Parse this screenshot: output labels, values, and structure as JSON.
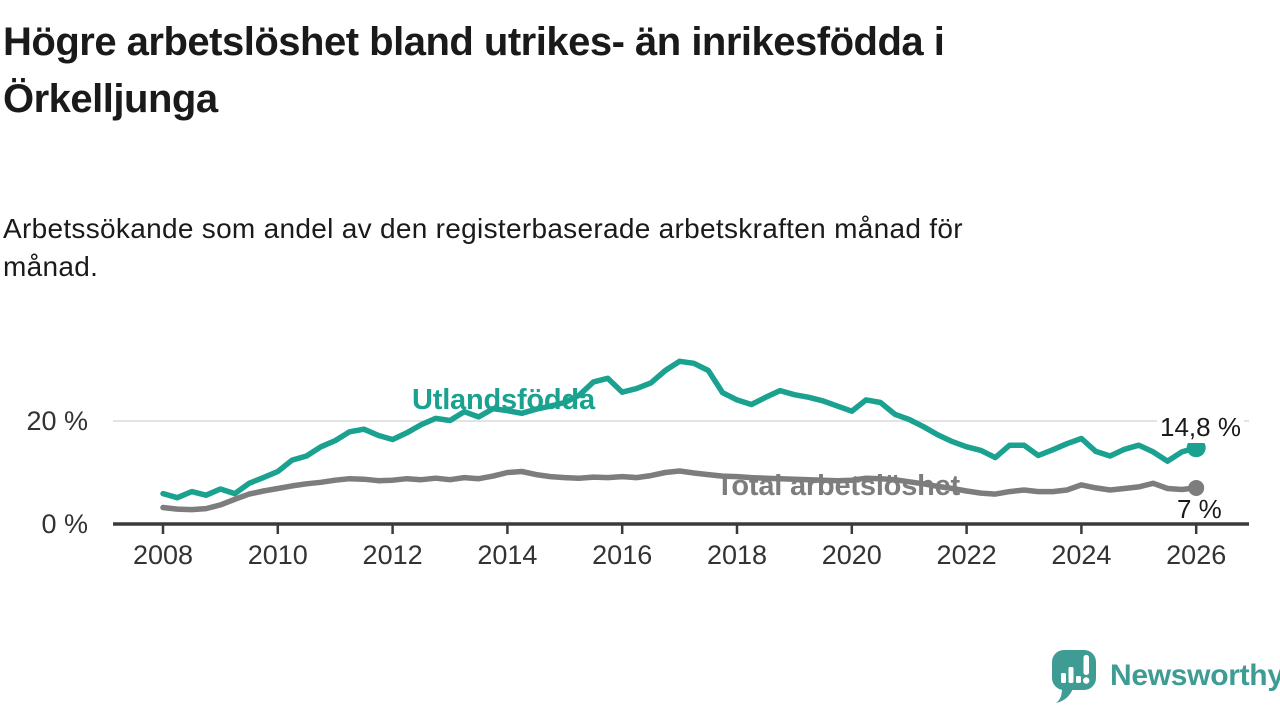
{
  "header": {
    "title_line1": "Högre arbetslöshet bland utrikes- än inrikesfödda i",
    "title_line2": "Örkelljunga",
    "subtitle_line1": "Arbetssökande som andel av den registerbaserade arbetskraften månad för",
    "subtitle_line2": "månad."
  },
  "chart_data": {
    "type": "line",
    "title": "Högre arbetslöshet bland utrikes- än inrikesfödda i Örkelljunga",
    "subtitle": "Arbetssökande som andel av den registerbaserade arbetskraften månad för månad.",
    "xlabel": "",
    "ylabel": "",
    "x_unit": "year",
    "x_start": 2008,
    "x_step_years": 0.25,
    "x_end": 2026,
    "ylim": [
      0,
      33
    ],
    "grid": "horizontal-only",
    "x_ticks": [
      2008,
      2010,
      2012,
      2014,
      2016,
      2018,
      2020,
      2022,
      2024,
      2026
    ],
    "y_ticks": [
      {
        "value": 0,
        "label": "0 %"
      },
      {
        "value": 20,
        "label": "20 %"
      }
    ],
    "axis_color": "#3a3a3a",
    "grid_color": "#dadada",
    "tick_text_color": "#333333",
    "series": [
      {
        "name": "Utlandsfödda",
        "color": "#1aa190",
        "end_value": 14.8,
        "end_label": "14,8 %",
        "values": [
          5.9,
          5.1,
          6.3,
          5.6,
          6.8,
          5.9,
          7.9,
          9.0,
          10.2,
          12.4,
          13.2,
          15.0,
          16.2,
          17.9,
          18.4,
          17.2,
          16.4,
          17.7,
          19.3,
          20.5,
          20.1,
          21.8,
          20.8,
          22.4,
          22.0,
          21.5,
          22.3,
          22.9,
          23.6,
          25.0,
          27.6,
          28.3,
          25.6,
          26.3,
          27.4,
          29.8,
          31.6,
          31.2,
          29.8,
          25.5,
          24.1,
          23.2,
          24.6,
          25.9,
          25.1,
          24.6,
          23.9,
          22.9,
          21.9,
          24.1,
          23.6,
          21.3,
          20.3,
          18.9,
          17.3,
          16.0,
          15.0,
          14.3,
          12.9,
          15.3,
          15.3,
          13.3,
          14.4,
          15.6,
          16.6,
          14.1,
          13.2,
          14.5,
          15.3,
          14.0,
          12.2,
          14.0,
          14.8
        ]
      },
      {
        "name": "Total arbetslöshet",
        "color": "#7d7d7d",
        "end_value": 7.0,
        "end_label": "7 %",
        "values": [
          3.2,
          2.9,
          2.8,
          3.0,
          3.7,
          4.8,
          5.8,
          6.4,
          6.9,
          7.4,
          7.8,
          8.1,
          8.5,
          8.8,
          8.7,
          8.4,
          8.5,
          8.8,
          8.6,
          8.9,
          8.6,
          9.0,
          8.8,
          9.3,
          10.0,
          10.2,
          9.6,
          9.2,
          9.0,
          8.9,
          9.1,
          9.0,
          9.2,
          9.0,
          9.4,
          10.0,
          10.3,
          9.9,
          9.6,
          9.3,
          9.2,
          9.0,
          8.9,
          8.8,
          8.7,
          8.6,
          8.5,
          8.4,
          8.5,
          8.9,
          8.8,
          8.6,
          8.2,
          7.8,
          7.3,
          6.9,
          6.4,
          6.0,
          5.8,
          6.3,
          6.6,
          6.3,
          6.3,
          6.6,
          7.6,
          7.0,
          6.6,
          6.9,
          7.2,
          7.9,
          6.9,
          6.7,
          7.0
        ]
      }
    ],
    "legend_position": "inline-labels-on-chart"
  },
  "branding": {
    "logo_text": "Newsworthy",
    "logo_color": "#3e9c95",
    "logo_icon": "speech-bubble-with-bar-chart-and-exclamation"
  }
}
